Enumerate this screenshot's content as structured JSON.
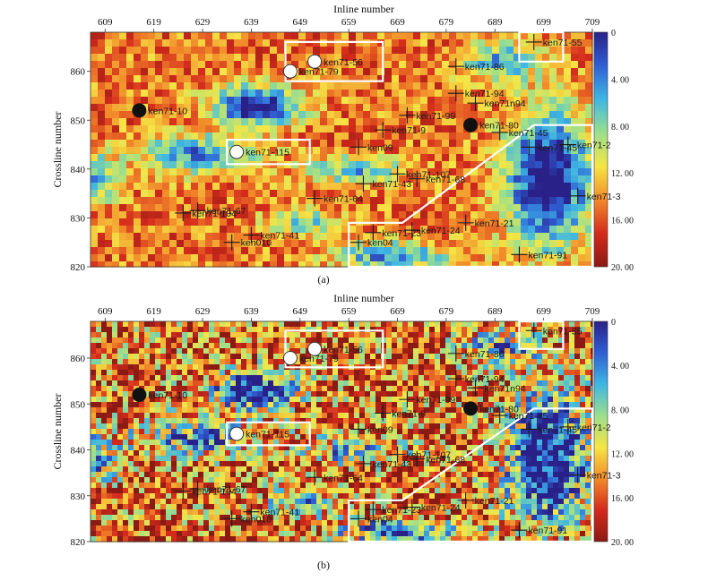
{
  "figure": {
    "panels": [
      {
        "id": "a",
        "caption": "(a)"
      },
      {
        "id": "b",
        "caption": "(b)"
      }
    ]
  },
  "chart_data": [
    {
      "type": "heatmap",
      "panel": "a",
      "caption": "(a)",
      "xlabel": "Inline number",
      "ylabel": "Crossline number",
      "x_ticks": [
        609,
        619,
        629,
        639,
        649,
        659,
        669,
        679,
        689,
        699,
        709
      ],
      "y_ticks": [
        820,
        830,
        840,
        850,
        860
      ],
      "xlim": [
        606,
        709
      ],
      "ylim": [
        820,
        868
      ],
      "colorbar": {
        "tick_labels": [
          "0",
          "4. 00",
          "8. 00",
          "12. 00",
          "16. 00",
          "20. 00"
        ],
        "range": [
          0,
          20
        ],
        "colors": [
          "#2a2188",
          "#2f5fd4",
          "#3fb7e3",
          "#9cdf8c",
          "#f5e645",
          "#f28a2a",
          "#d42a1c",
          "#8c1a14"
        ]
      },
      "zones": [
        {
          "name": "upper-right",
          "points": [
            [
              694,
              862
            ],
            [
              703,
              862
            ],
            [
              703,
              868
            ],
            [
              694,
              868
            ]
          ]
        },
        {
          "name": "top-center",
          "points": [
            [
              646,
              858
            ],
            [
              666,
              858
            ],
            [
              666,
              866
            ],
            [
              646,
              866
            ]
          ]
        },
        {
          "name": "left-middle",
          "points": [
            [
              634,
              841
            ],
            [
              651,
              841
            ],
            [
              651,
              846
            ],
            [
              634,
              846
            ]
          ]
        },
        {
          "name": "bottom-right",
          "points": [
            [
              659,
              820
            ],
            [
              709,
              820
            ],
            [
              709,
              849
            ],
            [
              697,
              849
            ],
            [
              670,
              829
            ],
            [
              659,
              829
            ]
          ]
        }
      ],
      "wells": [
        {
          "name": "ken71-10",
          "inline": 616,
          "crossline": 852,
          "type": "black"
        },
        {
          "name": "ken71-56",
          "inline": 652,
          "crossline": 862,
          "type": "white"
        },
        {
          "name": "ken71-79",
          "inline": 647,
          "crossline": 860,
          "type": "white"
        },
        {
          "name": "ken71-115",
          "inline": 636,
          "crossline": 843.5,
          "type": "white"
        },
        {
          "name": "ken71-80",
          "inline": 684,
          "crossline": 849,
          "type": "black"
        },
        {
          "name": "ken71-55",
          "inline": 697,
          "crossline": 866,
          "type": "cross"
        },
        {
          "name": "ken71-86",
          "inline": 681,
          "crossline": 861,
          "type": "cross"
        },
        {
          "name": "ken71-94",
          "inline": 681,
          "crossline": 855.5,
          "type": "cross"
        },
        {
          "name": "ken71n94",
          "inline": 685,
          "crossline": 853.5,
          "type": "cross"
        },
        {
          "name": "ken71-99",
          "inline": 671,
          "crossline": 851,
          "type": "cross"
        },
        {
          "name": "ken71-9",
          "inline": 666,
          "crossline": 848,
          "type": "cross"
        },
        {
          "name": "ken09",
          "inline": 661,
          "crossline": 844.5,
          "type": "cross"
        },
        {
          "name": "ken71-45",
          "inline": 690,
          "crossline": 847.5,
          "type": "cross"
        },
        {
          "name": "ken71-45b",
          "label": "ken71-45",
          "inline": 696,
          "crossline": 844.5,
          "type": "cross"
        },
        {
          "name": "ken71-2",
          "inline": 704,
          "crossline": 845,
          "type": "cross"
        },
        {
          "name": "ken71-107",
          "inline": 669,
          "crossline": 839,
          "type": "cross"
        },
        {
          "name": "ken71-68",
          "inline": 673,
          "crossline": 838,
          "type": "cross"
        },
        {
          "name": "ken71-43",
          "inline": 662,
          "crossline": 837,
          "type": "cross"
        },
        {
          "name": "ken71-64",
          "inline": 652,
          "crossline": 834,
          "type": "cross"
        },
        {
          "name": "ken71-3",
          "inline": 706,
          "crossline": 834.5,
          "type": "cross"
        },
        {
          "name": "ken71-67",
          "inline": 628,
          "crossline": 831.5,
          "type": "cross"
        },
        {
          "name": "ken71-104",
          "inline": 625,
          "crossline": 831,
          "type": "cross"
        },
        {
          "name": "ken71-21",
          "inline": 683,
          "crossline": 829,
          "type": "cross"
        },
        {
          "name": "ken71-24",
          "inline": 672,
          "crossline": 827.5,
          "type": "cross"
        },
        {
          "name": "ken71-23",
          "inline": 664,
          "crossline": 827,
          "type": "cross"
        },
        {
          "name": "ken04",
          "inline": 661,
          "crossline": 825,
          "type": "cross"
        },
        {
          "name": "ken71-41",
          "inline": 639,
          "crossline": 826.5,
          "type": "cross"
        },
        {
          "name": "ken010",
          "inline": 635,
          "crossline": 825,
          "type": "cross"
        },
        {
          "name": "ken71-91",
          "inline": 694,
          "crossline": 822.5,
          "type": "cross"
        }
      ]
    },
    {
      "type": "heatmap",
      "panel": "b",
      "caption": "(b)",
      "xlabel": "Inline number",
      "ylabel": "Crossline number",
      "x_ticks": [
        609,
        619,
        629,
        639,
        649,
        659,
        669,
        679,
        689,
        699,
        709
      ],
      "y_ticks": [
        820,
        830,
        840,
        850,
        860
      ],
      "xlim": [
        606,
        709
      ],
      "ylim": [
        820,
        868
      ],
      "colorbar": {
        "tick_labels": [
          "0",
          "4. 00",
          "8. 00",
          "12. 00",
          "16. 00",
          "20. 00"
        ],
        "range": [
          0,
          20
        ],
        "colors": [
          "#2a2188",
          "#2f5fd4",
          "#3fb7e3",
          "#9cdf8c",
          "#f5e645",
          "#f28a2a",
          "#d42a1c",
          "#8c1a14"
        ]
      },
      "zones": [
        {
          "name": "upper-right",
          "points": [
            [
              694,
              862
            ],
            [
              703,
              862
            ],
            [
              703,
              868
            ],
            [
              694,
              868
            ]
          ]
        },
        {
          "name": "top-center",
          "points": [
            [
              646,
              858
            ],
            [
              666,
              858
            ],
            [
              666,
              866
            ],
            [
              646,
              866
            ]
          ]
        },
        {
          "name": "left-middle",
          "points": [
            [
              634,
              841
            ],
            [
              651,
              841
            ],
            [
              651,
              846
            ],
            [
              634,
              846
            ]
          ]
        },
        {
          "name": "bottom-right",
          "points": [
            [
              659,
              820
            ],
            [
              709,
              820
            ],
            [
              709,
              849
            ],
            [
              697,
              849
            ],
            [
              670,
              829
            ],
            [
              659,
              829
            ]
          ]
        }
      ],
      "wells": [
        {
          "name": "ken71-10",
          "inline": 616,
          "crossline": 852,
          "type": "black"
        },
        {
          "name": "ken71-56",
          "inline": 652,
          "crossline": 862,
          "type": "white"
        },
        {
          "name": "ken71-79",
          "inline": 647,
          "crossline": 860,
          "type": "white"
        },
        {
          "name": "ken71-115",
          "inline": 636,
          "crossline": 843.5,
          "type": "white"
        },
        {
          "name": "ken71-80",
          "inline": 684,
          "crossline": 849,
          "type": "black"
        },
        {
          "name": "ken71-55",
          "inline": 697,
          "crossline": 866,
          "type": "cross"
        },
        {
          "name": "ken71-86",
          "inline": 681,
          "crossline": 861,
          "type": "cross"
        },
        {
          "name": "ken71-94",
          "inline": 681,
          "crossline": 855.5,
          "type": "cross"
        },
        {
          "name": "ken71n94",
          "inline": 685,
          "crossline": 853.5,
          "type": "cross"
        },
        {
          "name": "ken71-99",
          "inline": 671,
          "crossline": 851,
          "type": "cross"
        },
        {
          "name": "ken71-9",
          "inline": 666,
          "crossline": 848,
          "type": "cross"
        },
        {
          "name": "ken09",
          "inline": 661,
          "crossline": 844.5,
          "type": "cross"
        },
        {
          "name": "ken71-45",
          "inline": 690,
          "crossline": 847.5,
          "type": "cross"
        },
        {
          "name": "ken71-45b",
          "label": "ken71-45",
          "inline": 696,
          "crossline": 844.5,
          "type": "cross"
        },
        {
          "name": "ken71-2",
          "inline": 704,
          "crossline": 845,
          "type": "cross"
        },
        {
          "name": "ken71-107",
          "inline": 669,
          "crossline": 839,
          "type": "cross"
        },
        {
          "name": "ken71-68",
          "inline": 673,
          "crossline": 838,
          "type": "cross"
        },
        {
          "name": "ken71-43",
          "inline": 662,
          "crossline": 837,
          "type": "cross"
        },
        {
          "name": "ken71-64",
          "inline": 652,
          "crossline": 834,
          "type": "cross"
        },
        {
          "name": "ken71-3",
          "inline": 706,
          "crossline": 834.5,
          "type": "cross"
        },
        {
          "name": "ken71-67",
          "inline": 628,
          "crossline": 831.5,
          "type": "cross"
        },
        {
          "name": "ken71-104",
          "inline": 625,
          "crossline": 831,
          "type": "cross"
        },
        {
          "name": "ken71-21",
          "inline": 683,
          "crossline": 829,
          "type": "cross"
        },
        {
          "name": "ken71-24",
          "inline": 672,
          "crossline": 827.5,
          "type": "cross"
        },
        {
          "name": "ken71-23",
          "inline": 664,
          "crossline": 827,
          "type": "cross"
        },
        {
          "name": "ken04",
          "inline": 661,
          "crossline": 825,
          "type": "cross"
        },
        {
          "name": "ken71-41",
          "inline": 639,
          "crossline": 826.5,
          "type": "cross"
        },
        {
          "name": "ken010",
          "inline": 635,
          "crossline": 825,
          "type": "cross"
        },
        {
          "name": "ken71-91",
          "inline": 694,
          "crossline": 822.5,
          "type": "cross"
        }
      ]
    }
  ]
}
